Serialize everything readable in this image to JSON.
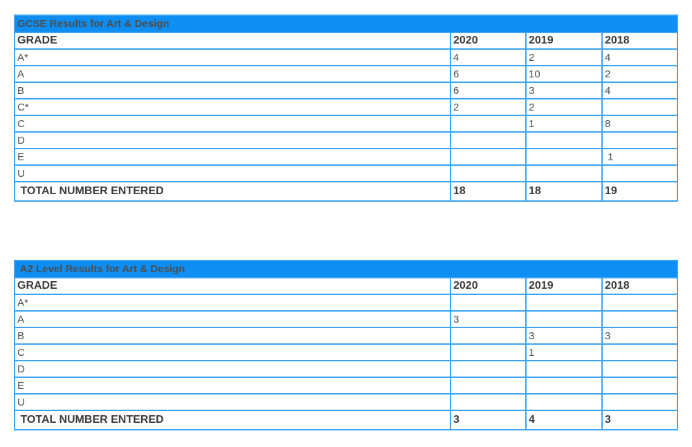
{
  "colors": {
    "title_bar_bg": "#0e8ef2",
    "table_border": "#3ea3f2",
    "title_text": "#ffffff",
    "header_text": "#3b3b3b",
    "cell_text": "#4d4d4d",
    "page_bg": "#ffffff"
  },
  "tables": [
    {
      "title": "GCSE Results for Art & Design",
      "columns": [
        "GRADE",
        "2020",
        "2019",
        "2018"
      ],
      "rows": [
        {
          "grade": "A*",
          "values": [
            "4",
            "2",
            "4"
          ]
        },
        {
          "grade": "A",
          "values": [
            "6",
            "10",
            "2"
          ]
        },
        {
          "grade": "B",
          "values": [
            "6",
            "3",
            "4"
          ]
        },
        {
          "grade": "C*",
          "values": [
            "2",
            "2",
            ""
          ]
        },
        {
          "grade": "C",
          "values": [
            "",
            "1",
            "8"
          ]
        },
        {
          "grade": "D",
          "values": [
            "",
            "",
            ""
          ]
        },
        {
          "grade": "E",
          "values": [
            "",
            "",
            " 1"
          ]
        },
        {
          "grade": "U",
          "values": [
            "",
            "",
            ""
          ]
        }
      ],
      "total": {
        "label": " TOTAL NUMBER ENTERED",
        "values": [
          "18",
          "18",
          "19"
        ]
      }
    },
    {
      "title": " A2 Level Results for Art & Design",
      "columns": [
        "GRADE",
        "2020",
        "2019",
        "2018"
      ],
      "rows": [
        {
          "grade": "A*",
          "values": [
            "",
            "",
            ""
          ]
        },
        {
          "grade": "A",
          "values": [
            "3",
            "",
            ""
          ]
        },
        {
          "grade": "B",
          "values": [
            "",
            "3",
            "3"
          ]
        },
        {
          "grade": "C",
          "values": [
            "",
            "1",
            ""
          ]
        },
        {
          "grade": "D",
          "values": [
            "",
            "",
            ""
          ]
        },
        {
          "grade": "E",
          "values": [
            "",
            "",
            ""
          ]
        },
        {
          "grade": "U",
          "values": [
            "",
            "",
            ""
          ]
        }
      ],
      "total": {
        "label": " TOTAL NUMBER ENTERED",
        "values": [
          "3",
          "4",
          "3"
        ]
      }
    }
  ]
}
